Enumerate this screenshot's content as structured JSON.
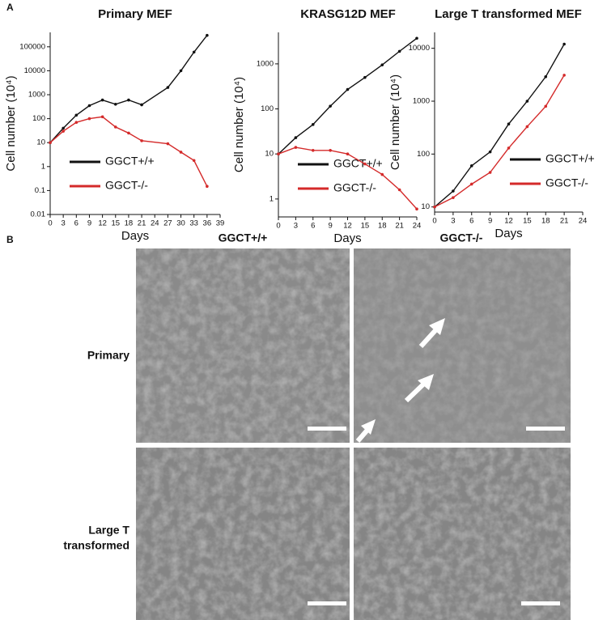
{
  "panel_label_a": "A",
  "chart_data": [
    {
      "type": "line",
      "title": "Primary MEF",
      "xlabel": "Days",
      "ylabel": "Cell number (10⁴)",
      "x": [
        0,
        3,
        6,
        9,
        12,
        15,
        18,
        21,
        27,
        30,
        33,
        36
      ],
      "xlim": [
        0,
        39
      ],
      "xticks": [
        0,
        3,
        6,
        9,
        12,
        15,
        18,
        21,
        24,
        27,
        30,
        33,
        36,
        39
      ],
      "yscale": "log",
      "ylim": [
        0.01,
        400000
      ],
      "yticks": [
        0.01,
        0.1,
        1,
        10,
        100,
        1000,
        10000,
        100000
      ],
      "legend": "lower left",
      "series": [
        {
          "name": "GGCT+/+",
          "color": "#111111",
          "values": [
            10,
            40,
            140,
            350,
            600,
            400,
            600,
            380,
            2000,
            10000,
            60000,
            300000
          ]
        },
        {
          "name": "GGCT-/-",
          "color": "#d42a2a",
          "values": [
            10,
            30,
            70,
            100,
            120,
            45,
            25,
            12,
            9,
            4,
            1.8,
            0.15
          ]
        }
      ]
    },
    {
      "type": "line",
      "title": "KRASG12D MEF",
      "xlabel": "Days",
      "ylabel": "Cell number (10⁴)",
      "x": [
        0,
        3,
        6,
        9,
        12,
        15,
        18,
        21,
        24
      ],
      "xlim": [
        0,
        24
      ],
      "xticks": [
        0,
        3,
        6,
        9,
        12,
        15,
        18,
        21,
        24
      ],
      "yscale": "log",
      "ylim": [
        0.4,
        5000
      ],
      "yticks": [
        1,
        10,
        100,
        1000
      ],
      "legend": "lower left",
      "series": [
        {
          "name": "GGCT+/+",
          "color": "#111111",
          "values": [
            10,
            23,
            45,
            115,
            270,
            500,
            950,
            1900,
            3700
          ]
        },
        {
          "name": "GGCT-/-",
          "color": "#d42a2a",
          "values": [
            10,
            14,
            12,
            12,
            10,
            6,
            3.5,
            1.6,
            0.6
          ]
        }
      ]
    },
    {
      "type": "line",
      "title": "Large T transformed MEF",
      "xlabel": "Days",
      "ylabel": "Cell number (10⁴)",
      "x": [
        0,
        3,
        6,
        9,
        12,
        15,
        18,
        21
      ],
      "xlim": [
        0,
        24
      ],
      "xticks": [
        0,
        3,
        6,
        9,
        12,
        15,
        18,
        21,
        24
      ],
      "yscale": "log",
      "ylim": [
        8,
        20000
      ],
      "yticks": [
        10,
        100,
        1000,
        10000
      ],
      "legend": "lower right",
      "series": [
        {
          "name": "GGCT+/+",
          "color": "#111111",
          "values": [
            10,
            20,
            60,
            110,
            370,
            1000,
            2900,
            12000
          ]
        },
        {
          "name": "GGCT-/-",
          "color": "#d42a2a",
          "values": [
            10,
            15,
            27,
            45,
            130,
            330,
            800,
            3100
          ]
        }
      ]
    }
  ],
  "panel_b": {
    "label": "B",
    "columns": [
      "GGCT+/+",
      "GGCT-/-"
    ],
    "rows": [
      [
        "Primary"
      ],
      [
        "Large T",
        "transformed"
      ]
    ]
  }
}
